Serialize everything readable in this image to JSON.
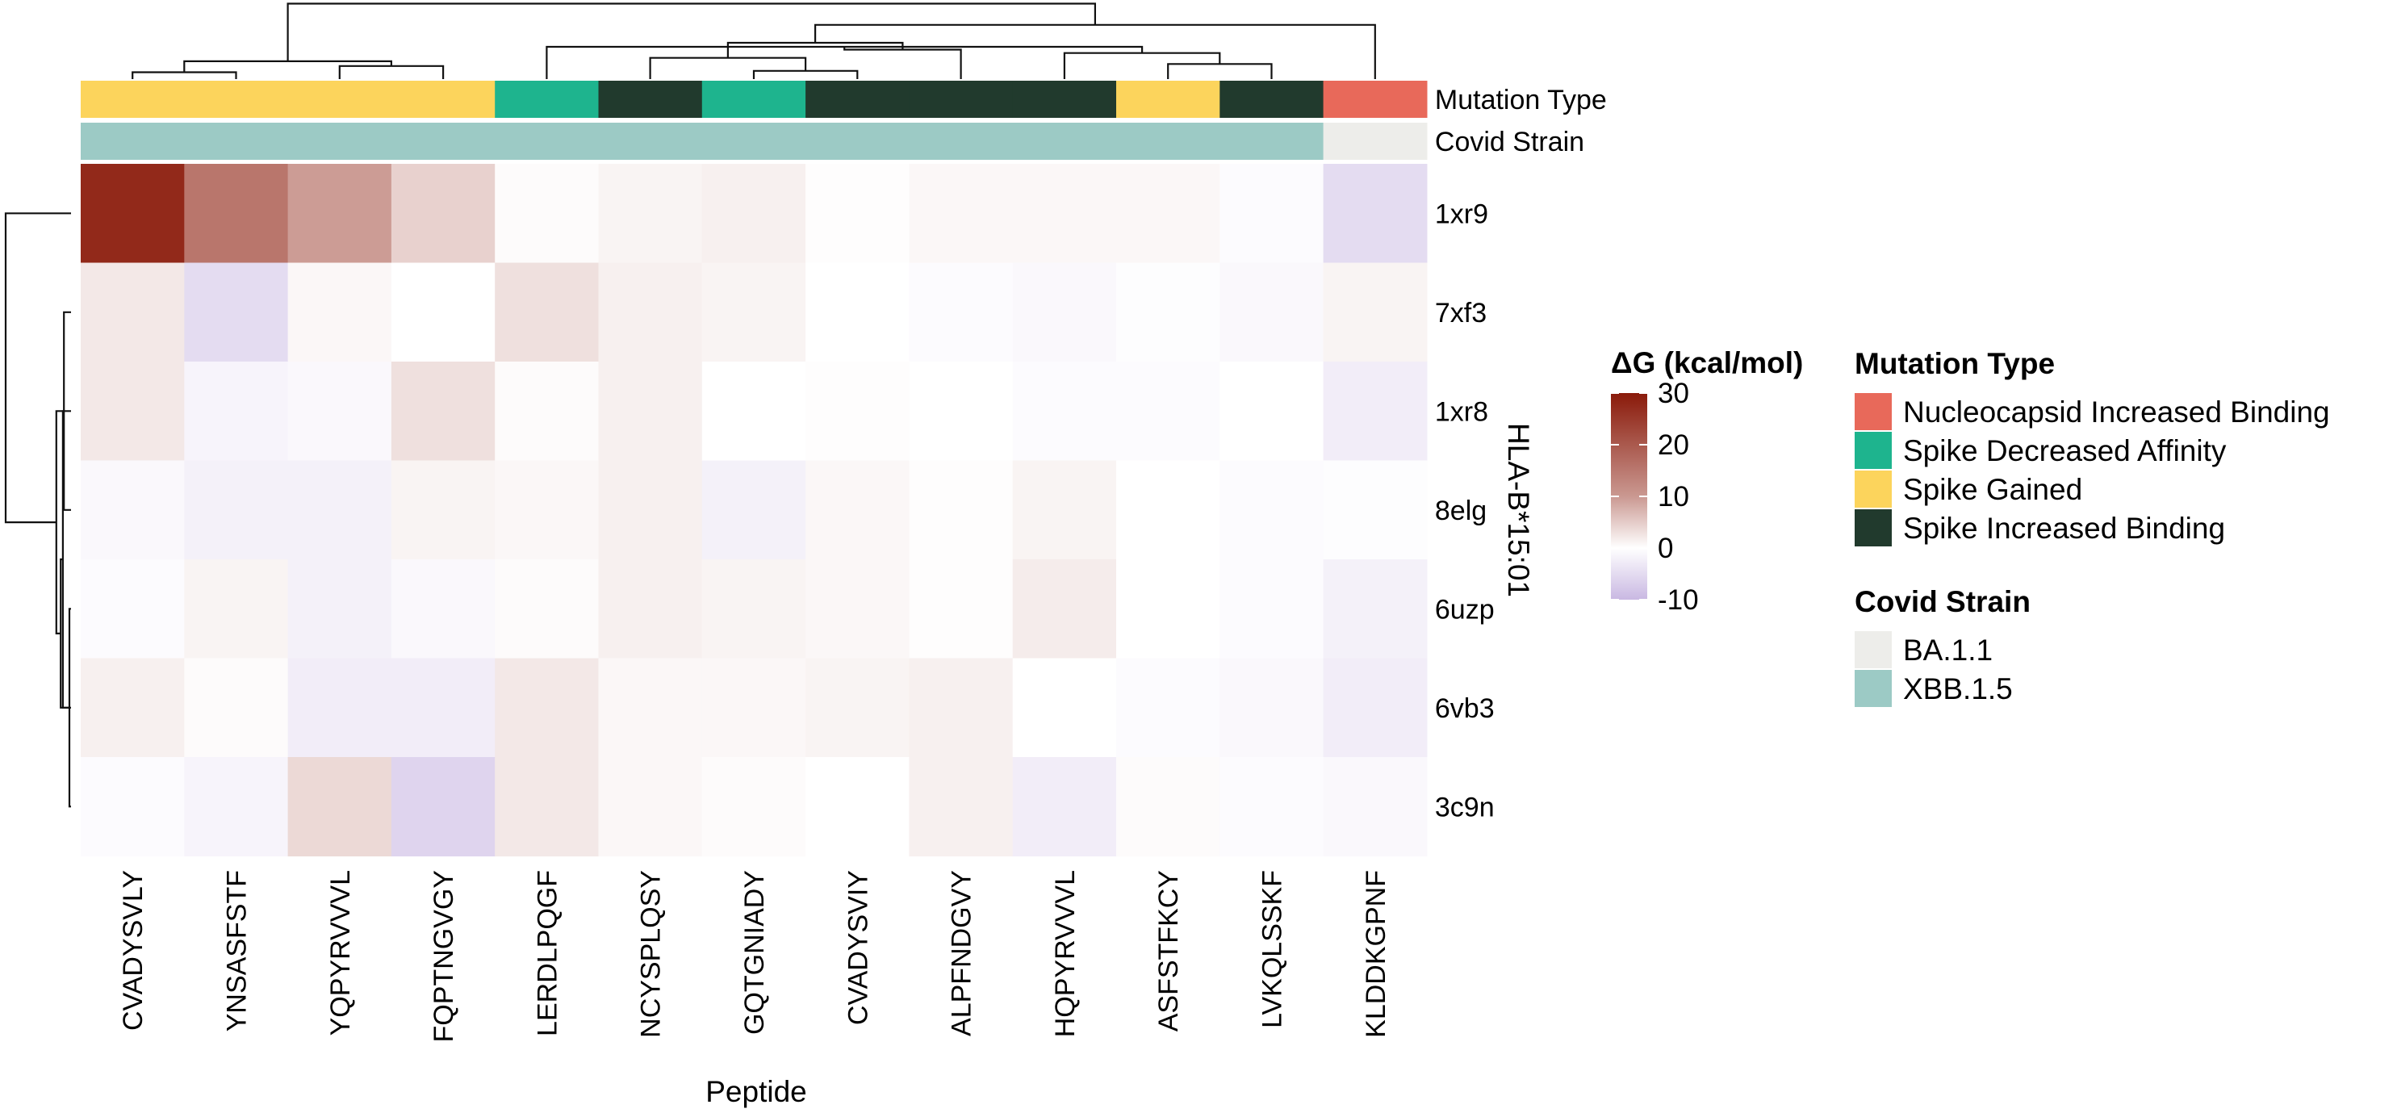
{
  "chart_data": {
    "type": "heatmap",
    "xlabel": "Peptide",
    "ylabel": "HLA-B*15:01",
    "columns": [
      "CVADYSVLY",
      "YNSASFSTF",
      "YQPYRVVVL",
      "FQPTNGVGY",
      "LERDLPQGF",
      "NCYSPLQSY",
      "GQTGNIADY",
      "CVADYSVIY",
      "ALPFNDGVY",
      "HQPYRVVVL",
      "ASFSTFKCY",
      "LVKQLSSKF",
      "KLDDKGPNF"
    ],
    "rows": [
      "1xr9",
      "7xf3",
      "1xr8",
      "8elg",
      "6uzp",
      "6vb3",
      "3c9n"
    ],
    "values": [
      [
        28,
        18,
        13,
        6,
        0.5,
        1.5,
        2,
        0.3,
        1,
        1,
        1,
        -0.5,
        -5
      ],
      [
        3,
        -5,
        1,
        0,
        4,
        2,
        1.5,
        0,
        -0.5,
        -1,
        -0.3,
        -1,
        1.5
      ],
      [
        3,
        -1.5,
        -1,
        4,
        0.5,
        2,
        0,
        0.3,
        0,
        -0.5,
        -0.5,
        0,
        -2.5
      ],
      [
        -1,
        -2,
        -2,
        1.5,
        1,
        2,
        -2,
        1,
        0.3,
        1.5,
        0,
        -0.5,
        -0.3
      ],
      [
        -0.5,
        1.5,
        -2,
        -1,
        0.5,
        2,
        1.5,
        1,
        0.3,
        2.5,
        0,
        -0.5,
        -2
      ],
      [
        2,
        0.5,
        -2.5,
        -2.5,
        3,
        1,
        1,
        1.5,
        2,
        0,
        -0.5,
        -1,
        -2.5
      ],
      [
        -0.5,
        -1.5,
        5,
        -6,
        3,
        1,
        0.5,
        0,
        2,
        -2.5,
        0.5,
        -0.5,
        -1
      ]
    ],
    "annotations": {
      "Mutation Type": [
        "Spike Gained",
        "Spike Gained",
        "Spike Gained",
        "Spike Gained",
        "Spike Decreased Affinity",
        "Spike Increased Binding",
        "Spike Decreased Affinity",
        "Spike Increased Binding",
        "Spike Increased Binding",
        "Spike Increased Binding",
        "Spike Gained",
        "Spike Increased Binding",
        "Nucleocapsid Increased Binding"
      ],
      "Covid Strain": [
        "XBB.1.5",
        "XBB.1.5",
        "XBB.1.5",
        "XBB.1.5",
        "XBB.1.5",
        "XBB.1.5",
        "XBB.1.5",
        "XBB.1.5",
        "XBB.1.5",
        "XBB.1.5",
        "XBB.1.5",
        "XBB.1.5",
        "BA.1.1"
      ]
    },
    "color_scale": {
      "title": "ΔG (kcal/mol)",
      "min": -10,
      "max": 30,
      "ticks": [
        "30",
        "20",
        "10",
        "0",
        "-10"
      ],
      "low_color": "#c9b8e2",
      "mid_color": "#ffffff",
      "high_color": "#8a1a0a"
    },
    "legends": [
      {
        "title": "Mutation Type",
        "annotation": "Mutation Type",
        "items": [
          {
            "label": "Nucleocapsid Increased Binding",
            "color": "#e8695a"
          },
          {
            "label": "Spike Decreased Affinity",
            "color": "#1eb48e"
          },
          {
            "label": "Spike Gained",
            "color": "#fcd45c"
          },
          {
            "label": "Spike Increased Binding",
            "color": "#213a2d"
          }
        ]
      },
      {
        "title": "Covid Strain",
        "annotation": "Covid Strain",
        "items": [
          {
            "label": "BA.1.1",
            "color": "#ededea"
          },
          {
            "label": "XBB.1.5",
            "color": "#9ccac5"
          }
        ]
      }
    ],
    "col_dendrogram": [
      [
        0,
        1
      ],
      [
        2,
        3
      ],
      [
        13,
        14
      ],
      [
        10,
        11
      ],
      [
        9,
        16
      ],
      [
        4,
        17
      ],
      [
        6,
        7
      ],
      [
        5,
        19
      ],
      [
        8,
        18
      ],
      [
        20,
        21
      ],
      [
        22,
        12
      ],
      [
        15,
        23
      ]
    ],
    "col_dendro_heights": [
      0.5,
      0.95,
      1.3,
      1.1,
      1.9,
      2.35,
      0.6,
      1.55,
      2.15,
      2.65,
      3.95,
      5.5
    ],
    "row_dendrogram": [
      [
        4,
        6
      ],
      [
        1,
        3
      ],
      [
        2,
        7
      ],
      [
        5,
        9
      ],
      [
        8,
        10
      ],
      [
        0,
        11
      ]
    ],
    "row_dendro_heights": [
      0.15,
      0.65,
      0.75,
      0.95,
      1.35,
      6.0
    ]
  }
}
